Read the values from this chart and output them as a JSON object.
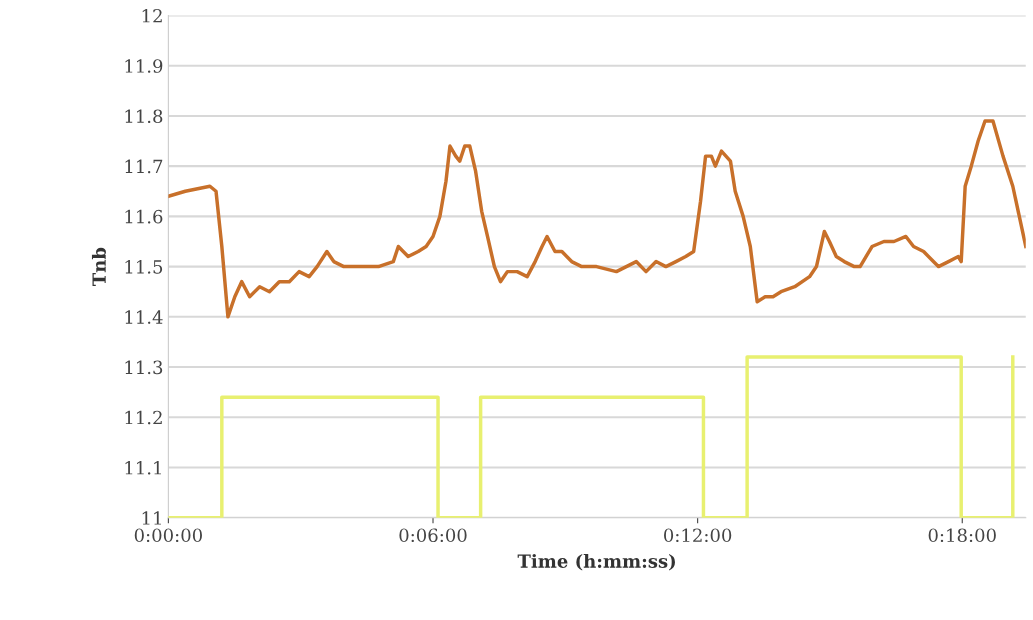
{
  "chart_data": {
    "type": "line",
    "xlabel": "Time (h:mm:ss)",
    "ylabel": "Tnb",
    "x": [
      0,
      0.0064,
      0.0157,
      0.018,
      0.0202,
      0.0225,
      0.0251,
      0.0277,
      0.0307,
      0.0345,
      0.0382,
      0.0419,
      0.0457,
      0.0494,
      0.0532,
      0.0562,
      0.0599,
      0.0625,
      0.0663,
      0.0719,
      0.0794,
      0.085,
      0.0869,
      0.0906,
      0.0944,
      0.0974,
      0.1,
      0.1026,
      0.1049,
      0.1064,
      0.1086,
      0.1101,
      0.112,
      0.1139,
      0.1161,
      0.1184,
      0.1206,
      0.1232,
      0.1255,
      0.1281,
      0.1318,
      0.1356,
      0.1386,
      0.1412,
      0.1431,
      0.1461,
      0.1487,
      0.1524,
      0.1562,
      0.1618,
      0.1693,
      0.1768,
      0.1805,
      0.1843,
      0.188,
      0.1918,
      0.1955,
      0.1985,
      0.2011,
      0.203,
      0.2052,
      0.2067,
      0.209,
      0.2124,
      0.2142,
      0.2172,
      0.2199,
      0.2225,
      0.2255,
      0.2285,
      0.2315,
      0.2367,
      0.2423,
      0.2449,
      0.2479,
      0.2498,
      0.2524,
      0.2554,
      0.2592,
      0.2614,
      0.2659,
      0.2704,
      0.2742,
      0.2787,
      0.2816,
      0.2854,
      0.2891,
      0.291,
      0.2948,
      0.2985,
      0.2996,
      0.3011,
      0.3034,
      0.306,
      0.3086,
      0.3116,
      0.3154,
      0.3191,
      0.324
    ],
    "series": [
      {
        "color": "#c8702a",
        "values": [
          11.64,
          11.65,
          11.66,
          11.65,
          11.54,
          11.4,
          11.44,
          11.47,
          11.44,
          11.46,
          11.45,
          11.47,
          11.47,
          11.49,
          11.48,
          11.5,
          11.53,
          11.51,
          11.5,
          11.5,
          11.5,
          11.51,
          11.54,
          11.52,
          11.53,
          11.54,
          11.56,
          11.6,
          11.67,
          11.74,
          11.72,
          11.71,
          11.74,
          11.74,
          11.69,
          11.61,
          11.56,
          11.5,
          11.47,
          11.49,
          11.49,
          11.48,
          11.51,
          11.54,
          11.56,
          11.53,
          11.53,
          11.51,
          11.5,
          11.5,
          11.49,
          11.51,
          11.49,
          11.51,
          11.5,
          11.51,
          11.52,
          11.53,
          11.63,
          11.72,
          11.72,
          11.7,
          11.73,
          11.71,
          11.65,
          11.6,
          11.54,
          11.43,
          11.44,
          11.44,
          11.45,
          11.46,
          11.48,
          11.5,
          11.57,
          11.55,
          11.52,
          11.51,
          11.5,
          11.5,
          11.54,
          11.55,
          11.55,
          11.56,
          11.54,
          11.53,
          11.51,
          11.5,
          11.51,
          11.52,
          11.51,
          11.66,
          11.7,
          11.75,
          11.79,
          11.79,
          11.72,
          11.66,
          11.54
        ]
      },
      {
        "color": "#e8f070",
        "x": [
          0,
          0.0202,
          0.0202,
          0.1019,
          0.1019,
          0.118,
          0.118,
          0.2022,
          0.2022,
          0.2187,
          0.2187,
          0.2996,
          0.2996,
          0.3191,
          0.3191
        ],
        "values": [
          11,
          11,
          11.24,
          11.24,
          11,
          11,
          11.24,
          11.24,
          11,
          11,
          11.32,
          11.32,
          11,
          11,
          11.32
        ]
      }
    ],
    "xlim": [
      0,
      0.324
    ],
    "xticks": [
      {
        "value": 0,
        "label": "0:00:00"
      },
      {
        "value": 0.1,
        "label": "0:06:00"
      },
      {
        "value": 0.2,
        "label": "0:12:00"
      },
      {
        "value": 0.3,
        "label": "0:18:00"
      }
    ],
    "ylim": [
      11,
      12
    ],
    "yticks": [
      11,
      11.1,
      11.2,
      11.3,
      11.4,
      11.5,
      11.6,
      11.7,
      11.8,
      11.9,
      12
    ],
    "grid": "y",
    "marker": "none",
    "line_style": "solid"
  }
}
